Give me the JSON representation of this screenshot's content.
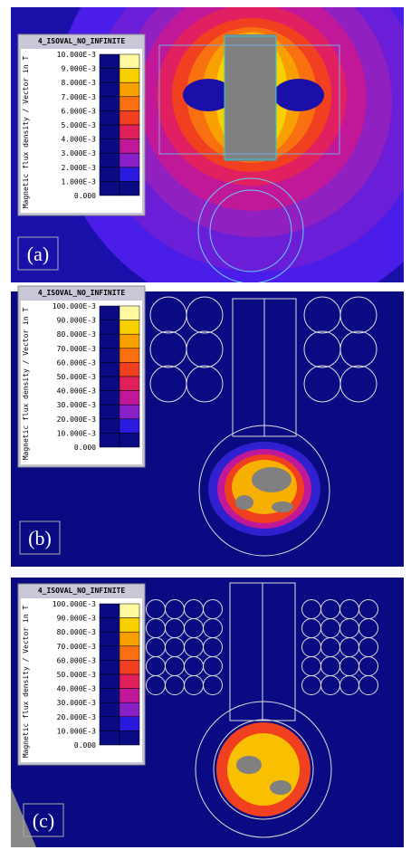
{
  "panels": [
    {
      "label": "(a)",
      "legend": {
        "title": "4_ISOVAL_NO_INFINITE",
        "axis_label": "Magnetic flux density / Vector in T",
        "levels": [
          "10.000E-3",
          "9.000E-3",
          "8.000E-3",
          "7.000E-3",
          "6.000E-3",
          "5.000E-3",
          "4.000E-3",
          "3.000E-3",
          "2.000E-3",
          "1.000E-3",
          "0.000"
        ]
      }
    },
    {
      "label": "(b)",
      "legend": {
        "title": "4_ISOVAL_NO_INFINITE",
        "axis_label": "Magnetic flux density / Vector in T",
        "levels": [
          "100.000E-3",
          "90.000E-3",
          "80.000E-3",
          "70.000E-3",
          "60.000E-3",
          "50.000E-3",
          "40.000E-3",
          "30.000E-3",
          "20.000E-3",
          "10.000E-3",
          "0.000"
        ]
      }
    },
    {
      "label": "(c)",
      "legend": {
        "title": "4_ISOVAL_NO_INFINITE",
        "axis_label": "Magnetic flux density / Vector in T",
        "levels": [
          "100.000E-3",
          "90.000E-3",
          "80.000E-3",
          "70.000E-3",
          "60.000E-3",
          "50.000E-3",
          "40.000E-3",
          "30.000E-3",
          "20.000E-3",
          "10.000E-3",
          "0.000"
        ]
      }
    }
  ]
}
